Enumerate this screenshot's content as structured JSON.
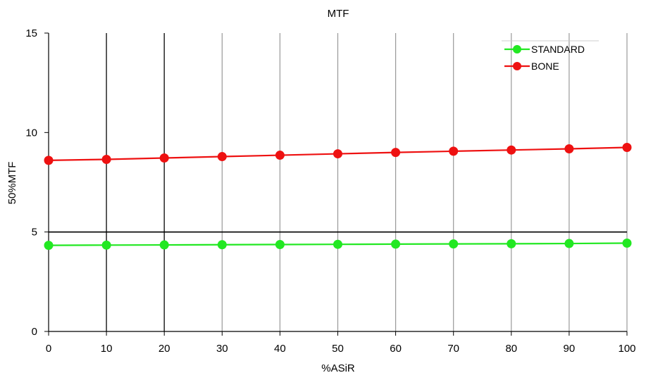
{
  "chart_data": {
    "type": "line",
    "title": "MTF",
    "xlabel": "%ASiR",
    "ylabel": "50%MTF",
    "x": [
      0,
      10,
      20,
      30,
      40,
      50,
      60,
      70,
      80,
      90,
      100
    ],
    "xticks": [
      "0",
      "10",
      "20",
      "30",
      "40",
      "50",
      "60",
      "70",
      "80",
      "90",
      "100"
    ],
    "yticks": [
      "0",
      "5",
      "10",
      "15"
    ],
    "xlim": [
      0,
      100
    ],
    "ylim": [
      0,
      15
    ],
    "grid": "vertical lines at every x tick; horizontal reference line at y = 5",
    "legend_position": "top-right",
    "series": [
      {
        "name": "STANDARD",
        "color": "#22e822",
        "values": [
          4.33,
          4.34,
          4.35,
          4.36,
          4.37,
          4.38,
          4.39,
          4.4,
          4.41,
          4.42,
          4.44
        ]
      },
      {
        "name": "BONE",
        "color": "#ee1111",
        "values": [
          8.6,
          8.65,
          8.72,
          8.79,
          8.86,
          8.93,
          9.0,
          9.06,
          9.12,
          9.18,
          9.25
        ]
      }
    ]
  }
}
